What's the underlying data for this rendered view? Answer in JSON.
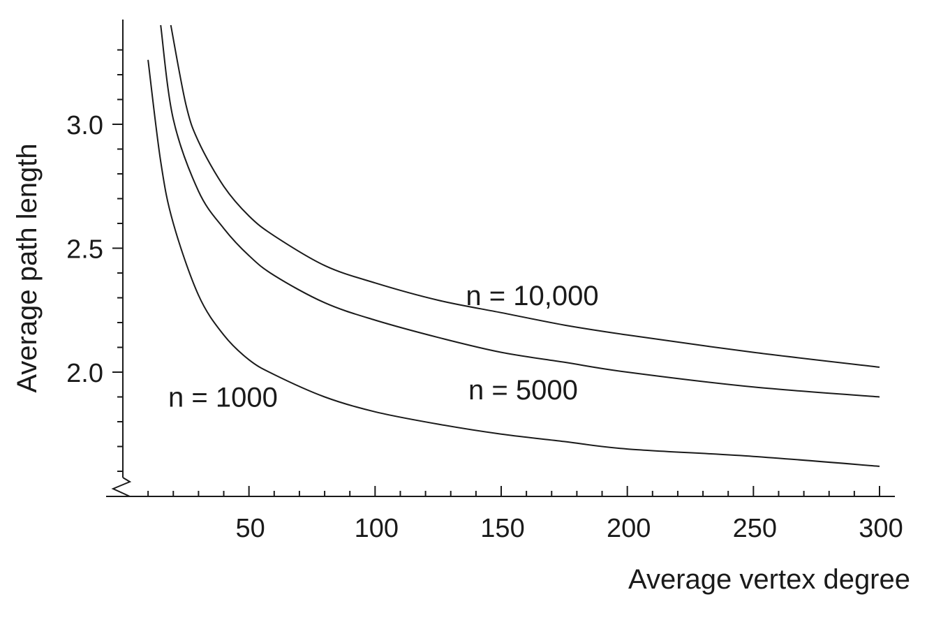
{
  "chart_data": {
    "type": "line",
    "title": "",
    "xlabel": "Average vertex degree",
    "ylabel": "Average path length",
    "xlim": [
      0,
      305
    ],
    "ylim": [
      1.5,
      3.4
    ],
    "x_ticks": [
      50,
      100,
      150,
      200,
      250,
      300
    ],
    "x_tick_labels": [
      "50",
      "100",
      "150",
      "200",
      "250",
      "300"
    ],
    "x_minor_step": 10,
    "y_ticks": [
      2.0,
      2.5,
      3.0
    ],
    "y_tick_labels": [
      "2.0",
      "2.5",
      "3.0"
    ],
    "y_minor_step": 0.1,
    "y_axis_break": true,
    "grid": false,
    "series": [
      {
        "name": "n = 1000",
        "x": [
          10,
          15,
          20,
          30,
          40,
          50,
          60,
          80,
          100,
          125,
          150,
          175,
          200,
          250,
          300
        ],
        "y": [
          3.26,
          2.85,
          2.6,
          2.31,
          2.15,
          2.05,
          1.99,
          1.9,
          1.84,
          1.79,
          1.75,
          1.72,
          1.69,
          1.66,
          1.62
        ]
      },
      {
        "name": "n = 5000",
        "x": [
          15,
          20,
          30,
          40,
          50,
          60,
          80,
          100,
          125,
          150,
          175,
          200,
          250,
          300
        ],
        "y": [
          3.4,
          3.02,
          2.73,
          2.58,
          2.47,
          2.39,
          2.28,
          2.21,
          2.14,
          2.08,
          2.04,
          2.0,
          1.94,
          1.9
        ]
      },
      {
        "name": "n = 10,000",
        "x": [
          19,
          25,
          30,
          40,
          50,
          60,
          80,
          100,
          125,
          150,
          175,
          200,
          250,
          300
        ],
        "y": [
          3.4,
          3.08,
          2.93,
          2.75,
          2.63,
          2.55,
          2.43,
          2.36,
          2.29,
          2.24,
          2.19,
          2.15,
          2.08,
          2.02
        ]
      }
    ],
    "annotations": [
      {
        "text": "n = 1000",
        "x": 18,
        "y": 1.9
      },
      {
        "text": "n = 5000",
        "x": 137,
        "y": 1.93
      },
      {
        "text": "n = 10,000",
        "x": 136,
        "y": 2.31
      }
    ]
  }
}
